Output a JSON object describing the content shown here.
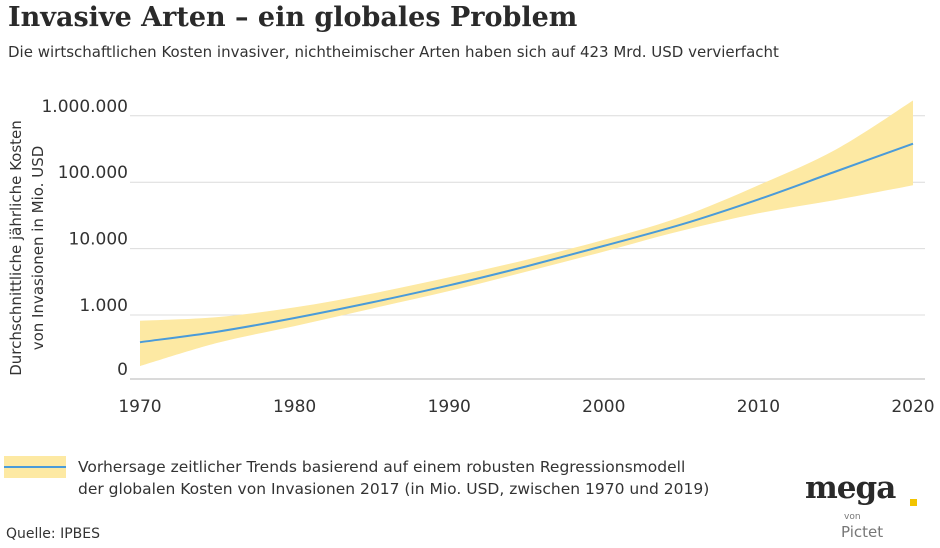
{
  "header": {
    "title": "Invasive Arten – ein globales Problem",
    "subtitle": "Die wirtschaftlichen Kosten invasiver, nichtheimischer Arten haben sich auf 423 Mrd. USD vervierfacht"
  },
  "legend": {
    "line1": "Vorhersage zeitlicher Trends basierend auf einem robusten Regressionsmodell",
    "line2": "der globalen Kosten von Invasionen 2017  (in Mio. USD, zwischen 1970 und 2019)"
  },
  "source": "Quelle: IPBES",
  "logo": {
    "main": "mega",
    "von": "von",
    "sub": "Pictet"
  },
  "colors": {
    "line": "#4a9bd9",
    "band": "#fde9a3",
    "grid": "#dcdcdc",
    "logo_dot": "#f2c400"
  },
  "chart_data": {
    "type": "area",
    "ylabel_line1": "Durchschnittliche jährliche Kosten",
    "ylabel_line2": "von Invasionen in Mio. USD",
    "y_scale": "log",
    "x_ticks": [
      "1970",
      "1980",
      "1990",
      "2000",
      "2010",
      "2020"
    ],
    "y_ticks": [
      "0",
      "1.000",
      "10.000",
      "100.000",
      "1.000.000"
    ],
    "xlim": [
      1970,
      2020
    ],
    "grid": "horizontal",
    "x": [
      1970,
      1975,
      1980,
      1985,
      1990,
      1995,
      2000,
      2005,
      2010,
      2015,
      2020
    ],
    "series": [
      {
        "values": [
          390,
          560,
          900,
          1550,
          2800,
          5400,
          11000,
          23000,
          55000,
          145000,
          380000
        ]
      },
      {
        "band_lower": [
          170,
          380,
          680,
          1250,
          2300,
          4500,
          9000,
          18500,
          34000,
          54000,
          90000
        ],
        "band_upper": [
          820,
          930,
          1300,
          2100,
          3700,
          6800,
          13500,
          30000,
          90000,
          310000,
          1700000
        ]
      }
    ]
  }
}
